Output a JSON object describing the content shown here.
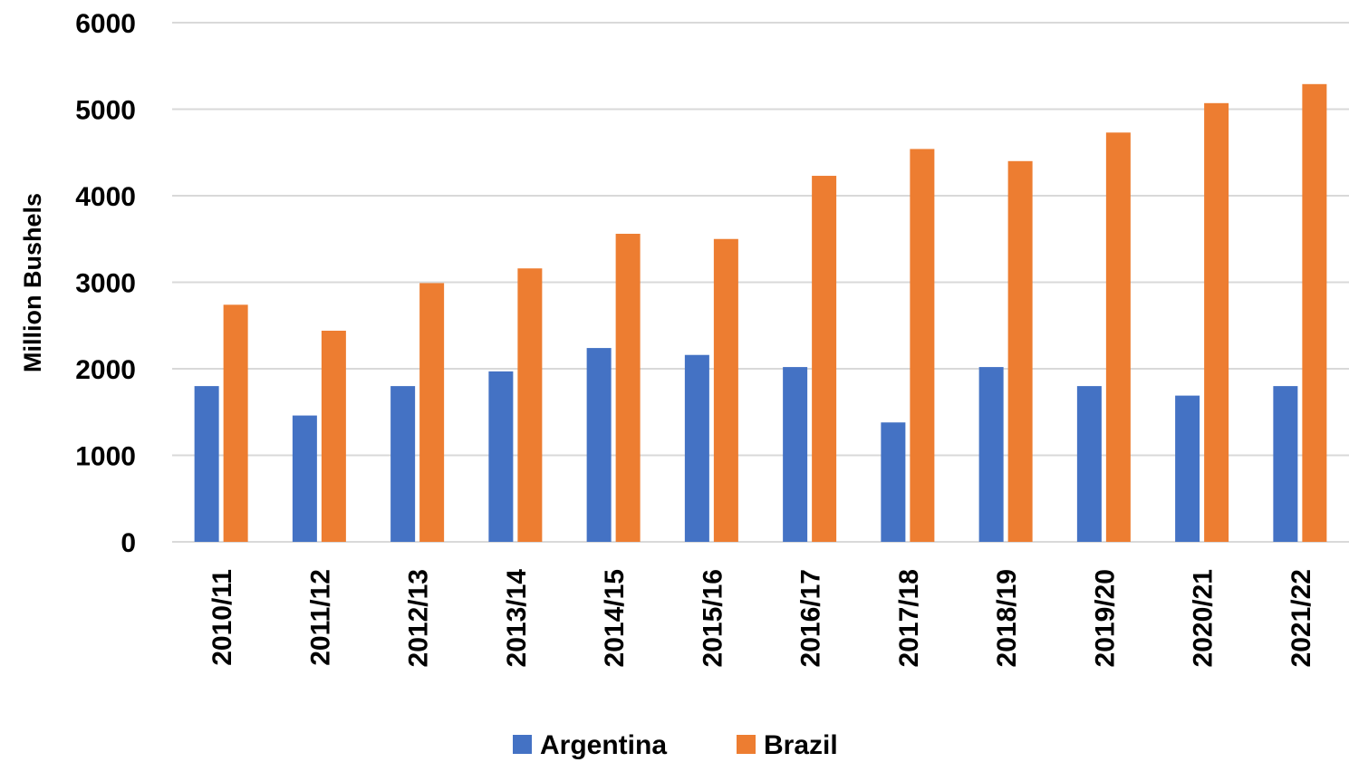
{
  "chart_data": {
    "type": "bar",
    "title": "",
    "xlabel": "",
    "ylabel": "Million Bushels",
    "ylim": [
      0,
      6000
    ],
    "yticks": [
      "0",
      "1000",
      "2000",
      "3000",
      "4000",
      "5000",
      "6000"
    ],
    "grid": true,
    "legend_position": "bottom",
    "categories": [
      "2010/11",
      "2011/12",
      "2012/13",
      "2013/14",
      "2014/15",
      "2015/16",
      "2016/17",
      "2017/18",
      "2018/19",
      "2019/20",
      "2020/21",
      "2021/22"
    ],
    "series": [
      {
        "name": "Argentina",
        "color": "#4472c4",
        "values": [
          1800,
          1460,
          1800,
          1970,
          2240,
          2160,
          2020,
          1380,
          2020,
          1800,
          1690,
          1800
        ]
      },
      {
        "name": "Brazil",
        "color": "#ed7d31",
        "values": [
          2740,
          2440,
          2990,
          3160,
          3560,
          3500,
          4230,
          4540,
          4400,
          4730,
          5070,
          5290
        ]
      }
    ]
  }
}
